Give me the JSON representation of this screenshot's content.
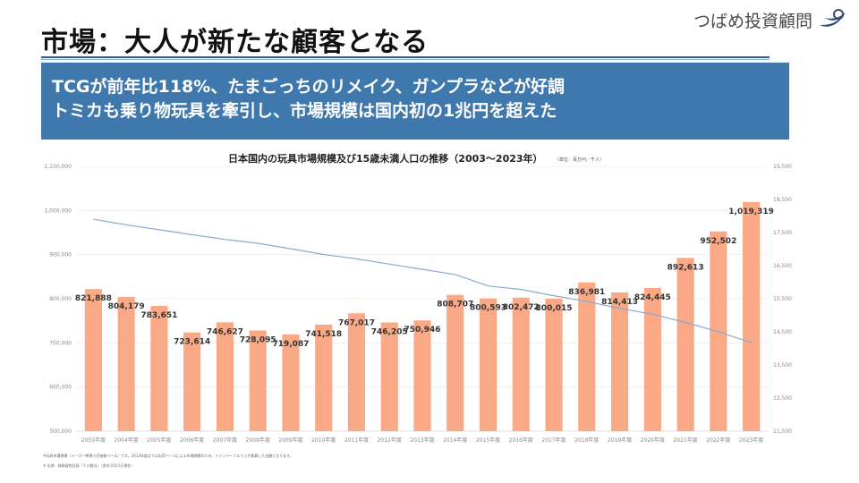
{
  "header": {
    "title": "市場：大人が新たな顧客となる",
    "brand": "つばめ投資顧問"
  },
  "banner": {
    "line1": "TCGが前年比118%、たまごっちのリメイク、ガンプラなどが好調",
    "line2": "トミカも乗り物玩具を牽引し、市場規模は国内初の1兆円を超えた"
  },
  "footnotes": [
    "※玩具市場規模（メーカー希望小売価格ベース）です。2013年度までは出荷ベースによる市場規模のため、トイジャーナルで上代換算した金額となります。",
    "※ 出典：総務省統計局「人口推計」（各年10月1日現在）"
  ],
  "chart_data": {
    "type": "bar",
    "title": "日本国内の玩具市場規模及び15歳未満人口の推移（2003〜2023年）",
    "unit_note": "（単位：百万円／千人）",
    "categories": [
      "2003年度",
      "2004年度",
      "2005年度",
      "2006年度",
      "2007年度",
      "2008年度",
      "2009年度",
      "2010年度",
      "2011年度",
      "2012年度",
      "2013年度",
      "2014年度",
      "2015年度",
      "2016年度",
      "2017年度",
      "2018年度",
      "2019年度",
      "2020年度",
      "2021年度",
      "2022年度",
      "2023年度"
    ],
    "series": [
      {
        "values": [
          821888,
          804179,
          783651,
          723614,
          746627,
          728095,
          719087,
          741518,
          767017,
          746205,
          750946,
          808707,
          800593,
          802472,
          800015,
          836981,
          814413,
          824445,
          892613,
          952502,
          1019319
        ],
        "labels": [
          "821,888",
          "804,179",
          "783,651",
          "723,614",
          "746,627",
          "728,095",
          "719,087",
          "741,518",
          "767,017",
          "746,205",
          "750,946",
          "808,707",
          "800,593",
          "802,472",
          "800,015",
          "836,981",
          "814,413",
          "824,445",
          "892,613",
          "952,502",
          "1,019,319"
        ],
        "axis": "left",
        "color": "#f9a986"
      },
      {
        "type": "line",
        "axis": "right",
        "color": "#8aa9d0",
        "values": [
          17900,
          17734,
          17585,
          17435,
          17293,
          17176,
          17011,
          16839,
          16705,
          16547,
          16390,
          16233,
          15887,
          15780,
          15592,
          15415,
          15210,
          15032,
          14784,
          14503,
          14173
        ]
      }
    ],
    "y_left": {
      "min": 500000,
      "max": 1100000,
      "ticks": [
        "500,000",
        "600,000",
        "700,000",
        "800,000",
        "900,000",
        "1,000,000",
        "1,100,000"
      ]
    },
    "y_right": {
      "min": 11500,
      "max": 19500,
      "ticks": [
        "11,500",
        "12,500",
        "13,500",
        "14,500",
        "15,500",
        "16,500",
        "17,500",
        "18,500",
        "19,500"
      ]
    },
    "grid": true,
    "legend": "none"
  }
}
